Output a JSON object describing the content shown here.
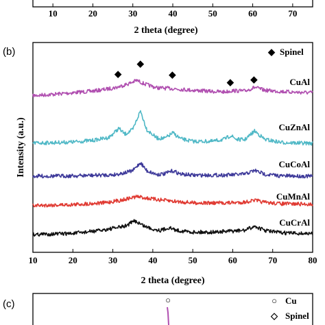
{
  "chart_data": [
    {
      "panel": "",
      "type": "line",
      "xlabel": "2 theta (degree)",
      "xticks": [
        "10",
        "20",
        "30",
        "40",
        "50",
        "60",
        "70"
      ],
      "xlim": [
        5,
        75
      ]
    },
    {
      "panel": "(b)",
      "type": "line",
      "xlabel": "2 theta (degree)",
      "ylabel": "Intensity (a.u.)",
      "xlim": [
        10,
        80
      ],
      "xticks": [
        "10",
        "20",
        "30",
        "40",
        "50",
        "60",
        "70",
        "80"
      ],
      "legend": [
        {
          "marker": "◆",
          "label": "Spinel"
        }
      ],
      "marker_positions": [
        31.3,
        36.9,
        44.9,
        59.4,
        65.3
      ],
      "series": [
        {
          "name": "CuAl",
          "color": "#b04fb0",
          "x": [
            10,
            15,
            20,
            25,
            28,
            31,
            34,
            36,
            38,
            41,
            45,
            50,
            55,
            58,
            60,
            63,
            65.5,
            68,
            72,
            76,
            80
          ],
          "y": [
            0.3,
            0.45,
            0.65,
            0.85,
            1.05,
            1.3,
            1.75,
            2.15,
            1.7,
            1.25,
            1.15,
            0.95,
            0.8,
            0.75,
            0.9,
            0.85,
            1.3,
            0.95,
            0.8,
            0.7,
            0.65
          ]
        },
        {
          "name": "CuZnAl",
          "color": "#4fb8c6",
          "x": [
            10,
            15,
            20,
            25,
            29,
            31.5,
            33,
            35,
            36.9,
            38.5,
            41,
            43,
            45,
            47,
            50,
            55,
            58,
            59.5,
            61,
            63,
            65.5,
            68,
            72,
            76,
            80
          ],
          "y": [
            0.15,
            0.2,
            0.3,
            0.55,
            1.0,
            2.4,
            1.5,
            2.2,
            5.1,
            2.2,
            0.9,
            0.85,
            1.7,
            0.8,
            0.4,
            0.4,
            0.75,
            1.3,
            0.7,
            0.65,
            2.0,
            0.7,
            0.25,
            0.15,
            0.1
          ]
        },
        {
          "name": "CuCoAl",
          "color": "#3e3a9a",
          "x": [
            10,
            20,
            30,
            33,
            35,
            36.9,
            38.5,
            41,
            43,
            45,
            47,
            50,
            55,
            60,
            63,
            65.5,
            68,
            72,
            80
          ],
          "y": [
            0.1,
            0.15,
            0.3,
            0.6,
            0.9,
            2.1,
            0.9,
            0.35,
            0.45,
            0.9,
            0.4,
            0.25,
            0.25,
            0.3,
            0.4,
            0.95,
            0.4,
            0.15,
            0.1
          ]
        },
        {
          "name": "CuMnAl",
          "color": "#e03a32",
          "x": [
            10,
            20,
            28,
            32,
            36,
            40,
            45,
            50,
            55,
            60,
            63,
            65.5,
            68,
            72,
            80
          ],
          "y": [
            0.25,
            0.4,
            0.7,
            1.1,
            1.7,
            1.3,
            0.95,
            0.7,
            0.65,
            0.7,
            0.8,
            1.1,
            0.75,
            0.55,
            0.45
          ]
        },
        {
          "name": "CuCrAl",
          "color": "#111111",
          "x": [
            10,
            20,
            27,
            30,
            33,
            35.5,
            38,
            40,
            42,
            44,
            46,
            50,
            55,
            60,
            63,
            65.5,
            68,
            72,
            80
          ],
          "y": [
            0.2,
            0.35,
            0.8,
            1.1,
            1.4,
            2.2,
            1.4,
            1.0,
            0.8,
            1.2,
            0.8,
            0.55,
            0.55,
            0.7,
            0.8,
            1.4,
            0.8,
            0.45,
            0.3
          ]
        }
      ]
    },
    {
      "panel": "(c)",
      "type": "line",
      "legend": [
        {
          "marker": "○",
          "label": "Cu"
        },
        {
          "marker": "◇",
          "label": "Spinel"
        }
      ],
      "markers": [
        {
          "symbol": "○",
          "x": 43.3
        }
      ],
      "series": [
        {
          "name": "",
          "color": "#b04fb0",
          "x": [
            43.3
          ],
          "y": [
            1
          ]
        }
      ]
    }
  ]
}
